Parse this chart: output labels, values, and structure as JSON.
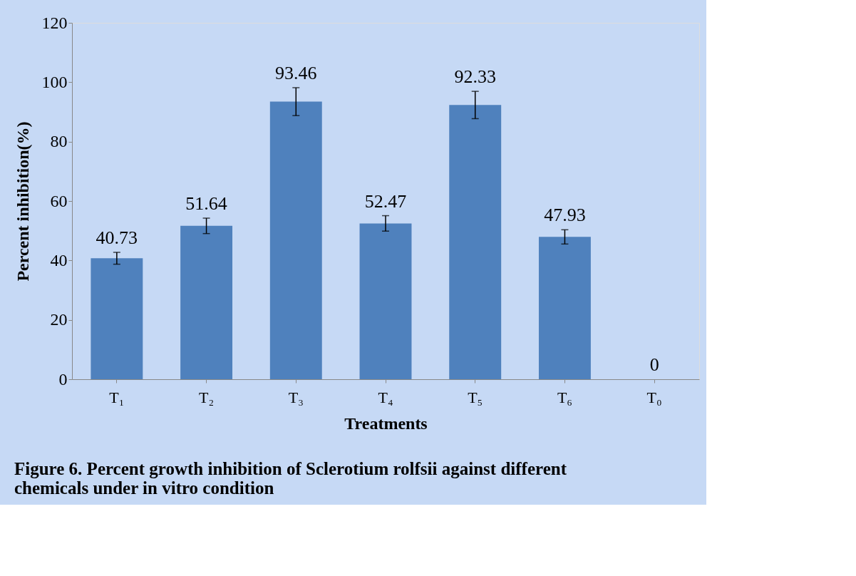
{
  "chart_data": {
    "type": "bar",
    "xlabel": "Treatments",
    "ylabel": "Percent  inhibition(%)",
    "categories": [
      "T₁",
      "T₂",
      "T₃",
      "T₄",
      "T₅",
      "T₆",
      "T₀"
    ],
    "values": [
      40.73,
      51.64,
      93.46,
      52.47,
      92.33,
      47.93,
      0
    ],
    "errors": [
      2.0,
      2.6,
      4.7,
      2.6,
      4.6,
      2.4,
      null
    ],
    "color": "#4f81bd",
    "ylim": [
      0,
      120
    ],
    "yticks": [
      0,
      20,
      40,
      60,
      80,
      100,
      120
    ],
    "data_labels": true,
    "annotations": [
      "Figure 6. Percent growth inhibition of Sclerotium rolfsii against different chemicals under in vitro condition"
    ]
  }
}
